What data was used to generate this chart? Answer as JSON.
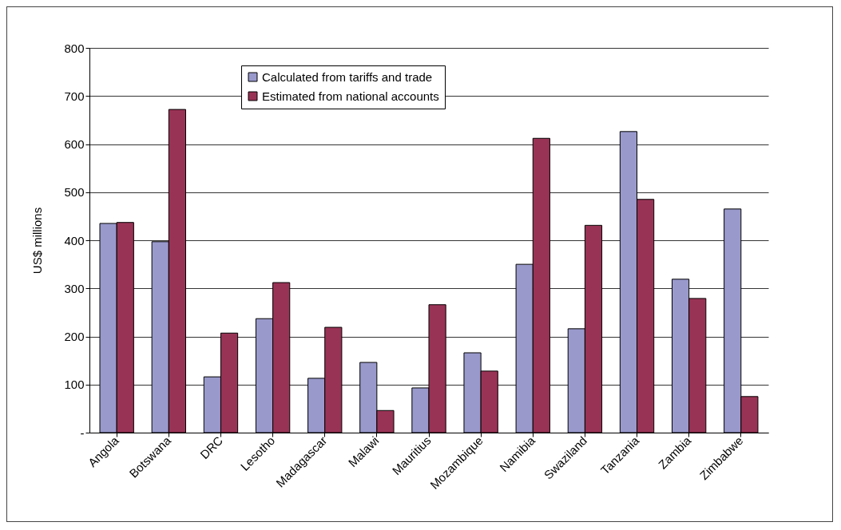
{
  "chart_data": {
    "type": "bar",
    "ylabel": "US$ millions",
    "categories": [
      "Angola",
      "Botswana",
      "DRC",
      "Lesotho",
      "Madagascar",
      "Malawi",
      "Mauritius",
      "Mozambique",
      "Namibia",
      "Swaziland",
      "Tanzania",
      "Zambia",
      "Zimbabwe"
    ],
    "series": [
      {
        "name": "Calculated from tariffs and trade",
        "color": "#9999cc",
        "values": [
          435,
          397,
          116,
          237,
          113,
          146,
          93,
          166,
          350,
          216,
          626,
          319,
          465
        ]
      },
      {
        "name": "Estimated from national accounts",
        "color": "#993355",
        "values": [
          437,
          672,
          207,
          312,
          219,
          46,
          266,
          128,
          612,
          431,
          485,
          279,
          75
        ]
      }
    ],
    "ylim": [
      0,
      800
    ],
    "yticks": [
      {
        "value": 0,
        "label": "-"
      },
      100,
      200,
      300,
      400,
      500,
      600,
      700,
      800
    ],
    "grid": "y",
    "legend": "top"
  }
}
